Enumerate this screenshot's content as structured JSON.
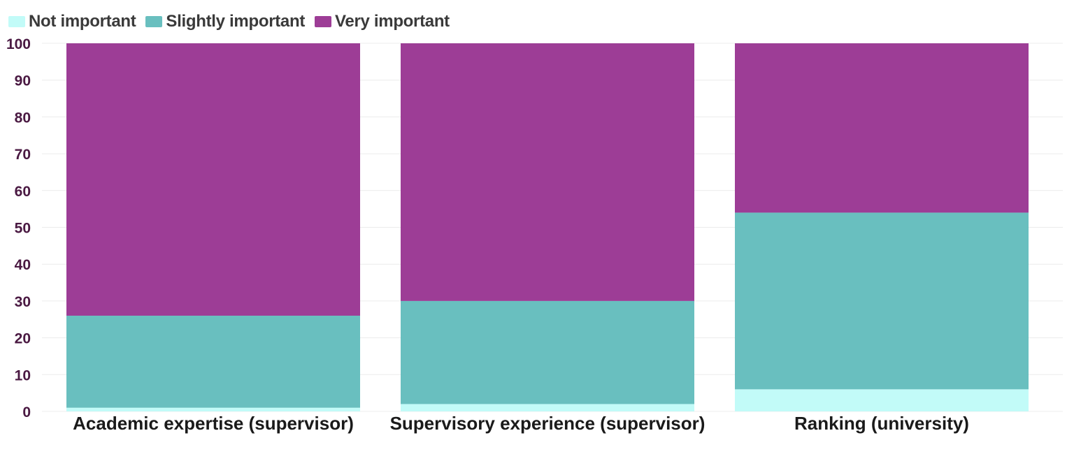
{
  "legend": [
    {
      "label": "Not important",
      "color": "#c2fbf8"
    },
    {
      "label": "Slightly important",
      "color": "#69bfbf"
    },
    {
      "label": "Very important",
      "color": "#9d3d96"
    }
  ],
  "chart_data": {
    "type": "bar",
    "stacked": true,
    "categories": [
      "Academic expertise (supervisor)",
      "Supervisory experience (supervisor)",
      "Ranking (university)"
    ],
    "series": [
      {
        "name": "Not important",
        "color": "#c2fbf8",
        "values": [
          1,
          2,
          6
        ]
      },
      {
        "name": "Slightly important",
        "color": "#69bfbf",
        "values": [
          25,
          28,
          48
        ]
      },
      {
        "name": "Very important",
        "color": "#9d3d96",
        "values": [
          74,
          70,
          46
        ]
      }
    ],
    "ylim": [
      0,
      100
    ],
    "yticks": [
      "0",
      "10",
      "20",
      "30",
      "40",
      "50",
      "60",
      "70",
      "80",
      "90",
      "100"
    ],
    "grid": true,
    "legend_position": "top-left"
  }
}
